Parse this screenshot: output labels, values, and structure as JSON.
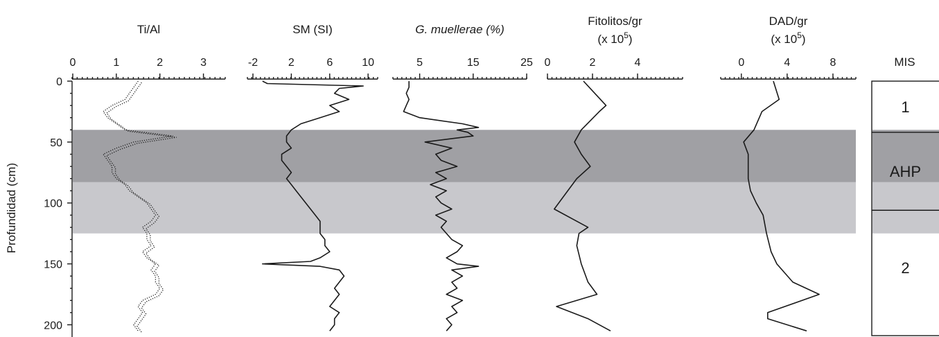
{
  "colors": {
    "ahp_band": "#a0a0a4",
    "light_band": "#c8c8cc",
    "line": "#1a1a1a"
  },
  "chart_data": {
    "type": "line",
    "orientation": "depth-profile",
    "y_axis": {
      "label": "Profundidad (cm)",
      "ticks": [
        "0",
        "50",
        "100",
        "150",
        "200"
      ],
      "range": [
        0,
        205
      ],
      "inverted": true
    },
    "shaded_bands": [
      {
        "name": "AHP",
        "from": 40,
        "to": 83,
        "color": "#a0a0a4"
      },
      {
        "from": 83,
        "to": 125,
        "color": "#c8c8cc"
      }
    ],
    "panels": [
      {
        "title": "Ti/Al",
        "title_italic": false,
        "title_sup": "",
        "title_after": "",
        "ticks": [
          "0",
          "1",
          "2",
          "3"
        ],
        "range": [
          0,
          3.5
        ],
        "style": "dotted",
        "depth": [
          0,
          5,
          10,
          15,
          20,
          25,
          30,
          35,
          40,
          45,
          50,
          55,
          60,
          65,
          70,
          75,
          80,
          85,
          90,
          95,
          100,
          105,
          110,
          115,
          120,
          125,
          130,
          135,
          140,
          145,
          150,
          155,
          160,
          165,
          170,
          175,
          180,
          185,
          190,
          195,
          200,
          205
        ],
        "values": [
          1.5,
          1.4,
          1.3,
          1.2,
          0.9,
          0.7,
          0.8,
          1.0,
          1.2,
          2.3,
          1.4,
          1.0,
          0.7,
          0.8,
          0.9,
          0.9,
          1.0,
          1.2,
          1.3,
          1.5,
          1.7,
          1.8,
          1.9,
          1.8,
          1.6,
          1.7,
          1.7,
          1.8,
          1.6,
          1.7,
          1.9,
          1.8,
          1.9,
          1.9,
          2.0,
          1.9,
          1.6,
          1.5,
          1.6,
          1.5,
          1.4,
          1.5
        ]
      },
      {
        "title": "SM (SI)",
        "title_italic": false,
        "title_sup": "",
        "title_after": "",
        "ticks": [
          "-2",
          "2",
          "6",
          "10"
        ],
        "range": [
          -2,
          11
        ],
        "style": "solid",
        "depth": [
          0,
          2,
          4,
          6,
          10,
          15,
          20,
          25,
          30,
          35,
          40,
          45,
          50,
          55,
          60,
          65,
          70,
          75,
          80,
          85,
          90,
          95,
          100,
          105,
          110,
          115,
          120,
          125,
          130,
          135,
          140,
          145,
          148,
          150,
          152,
          155,
          160,
          165,
          170,
          175,
          180,
          185,
          190,
          195,
          200,
          205
        ],
        "values": [
          -1,
          -0.5,
          9.5,
          7,
          6.5,
          8,
          6,
          7,
          5,
          3,
          2,
          1.5,
          1.5,
          2,
          1,
          1,
          1.5,
          2,
          1.5,
          2,
          2.5,
          3,
          3.5,
          4,
          4.5,
          5,
          5,
          5,
          5.5,
          5.5,
          6,
          5,
          4,
          -1,
          5,
          7,
          7.5,
          7,
          6.5,
          7,
          6.5,
          6,
          7,
          6.5,
          6.5,
          6
        ]
      },
      {
        "title": "G. muellerae (%)",
        "title_italic": true,
        "title_sup": "",
        "title_after": "",
        "ticks": [
          "5",
          "15",
          "25"
        ],
        "range": [
          0,
          25
        ],
        "style": "solid",
        "depth": [
          0,
          5,
          10,
          15,
          20,
          25,
          30,
          35,
          38,
          40,
          42,
          45,
          50,
          55,
          60,
          65,
          70,
          75,
          80,
          85,
          90,
          95,
          100,
          105,
          110,
          115,
          120,
          125,
          130,
          135,
          140,
          145,
          150,
          152,
          155,
          160,
          165,
          170,
          175,
          180,
          185,
          190,
          195,
          200,
          205
        ],
        "values": [
          3,
          3,
          2.5,
          3,
          2.5,
          2,
          5,
          13,
          16,
          12,
          14,
          15,
          6,
          11,
          8,
          9,
          12,
          8,
          10,
          7,
          10,
          8,
          9,
          11,
          8,
          10,
          9,
          10,
          11,
          13,
          12,
          10,
          12,
          16,
          11,
          13,
          11,
          12,
          10,
          13,
          11,
          12,
          10,
          11,
          10
        ]
      },
      {
        "title": "Fitolitos/gr",
        "title_italic": false,
        "title_sup": "5",
        "title_after": ")",
        "subtitle": "(x 10",
        "ticks": [
          "0",
          "2",
          "4"
        ],
        "range": [
          0,
          6
        ],
        "style": "solid",
        "depth": [
          0,
          20,
          25,
          40,
          50,
          60,
          70,
          80,
          90,
          105,
          115,
          120,
          125,
          135,
          150,
          165,
          175,
          185,
          195,
          205
        ],
        "values": [
          1.6,
          2.6,
          2.3,
          1.5,
          1.2,
          1.5,
          1.9,
          1.3,
          0.9,
          0.3,
          1.3,
          1.8,
          1.4,
          1.3,
          1.5,
          1.8,
          2.2,
          0.4,
          1.8,
          2.8
        ]
      },
      {
        "title": "DAD/gr",
        "title_italic": false,
        "title_sup": "5",
        "title_after": ")",
        "subtitle": "(x 10",
        "ticks": [
          "0",
          "4",
          "8"
        ],
        "range": [
          -1.5,
          10
        ],
        "style": "solid",
        "depth": [
          0,
          15,
          25,
          40,
          50,
          60,
          70,
          80,
          90,
          100,
          110,
          125,
          140,
          150,
          165,
          175,
          190,
          195,
          205
        ],
        "values": [
          2.8,
          3.3,
          1.8,
          1.1,
          0.2,
          0.6,
          0.6,
          0.6,
          0.8,
          1.3,
          1.9,
          2.2,
          2.6,
          3.1,
          4.5,
          6.8,
          2.3,
          2.3,
          5.7
        ]
      }
    ],
    "mis": {
      "title": "MIS",
      "units": [
        {
          "label": "1",
          "from": 0,
          "to": 42
        },
        {
          "label": "AHP",
          "from": 42,
          "to": 106
        },
        {
          "label": "2",
          "from": 106,
          "to": 205
        }
      ]
    }
  }
}
